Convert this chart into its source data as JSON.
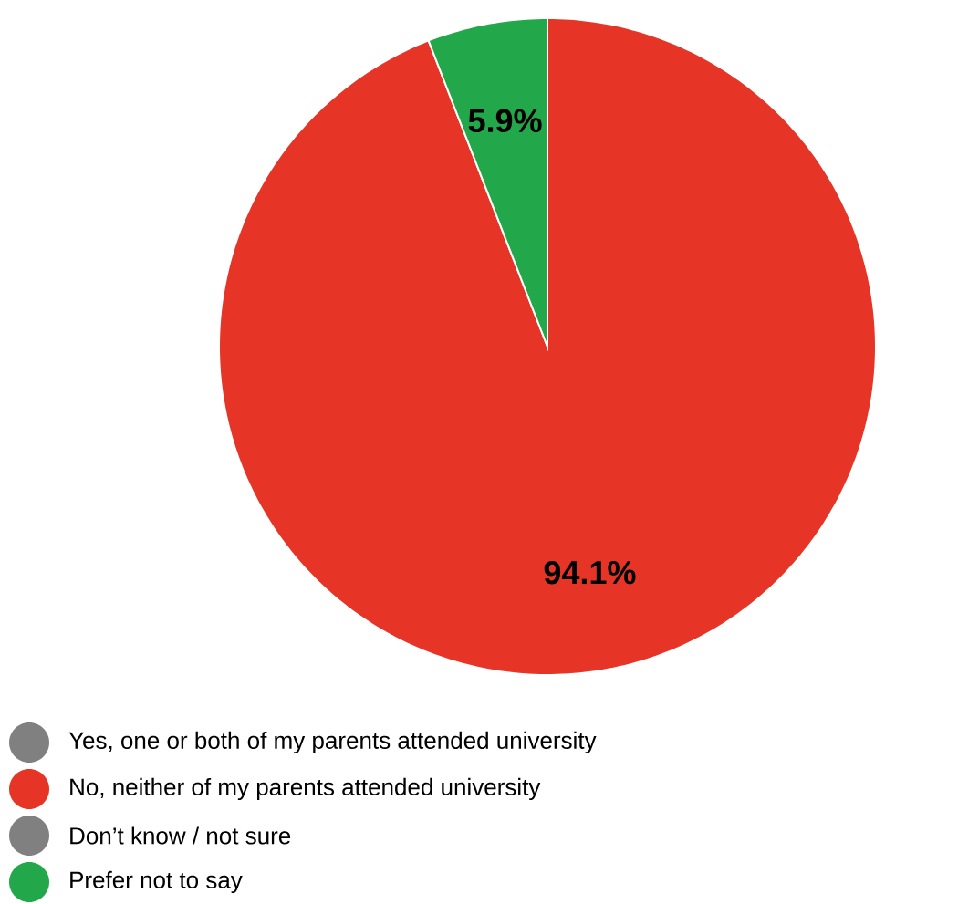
{
  "chart_data": {
    "type": "pie",
    "categories": [
      "Yes, one or both of my parents attended university",
      "No, neither of my parents attended university",
      "Don’t know / not sure",
      "Prefer not to say"
    ],
    "values": [
      0,
      94.1,
      0,
      5.9
    ],
    "colors": [
      "#808080",
      "#e63526",
      "#808080",
      "#22a84a"
    ],
    "value_labels": [
      null,
      "94.1%",
      null,
      "5.9%"
    ],
    "legend": "bottom left"
  }
}
